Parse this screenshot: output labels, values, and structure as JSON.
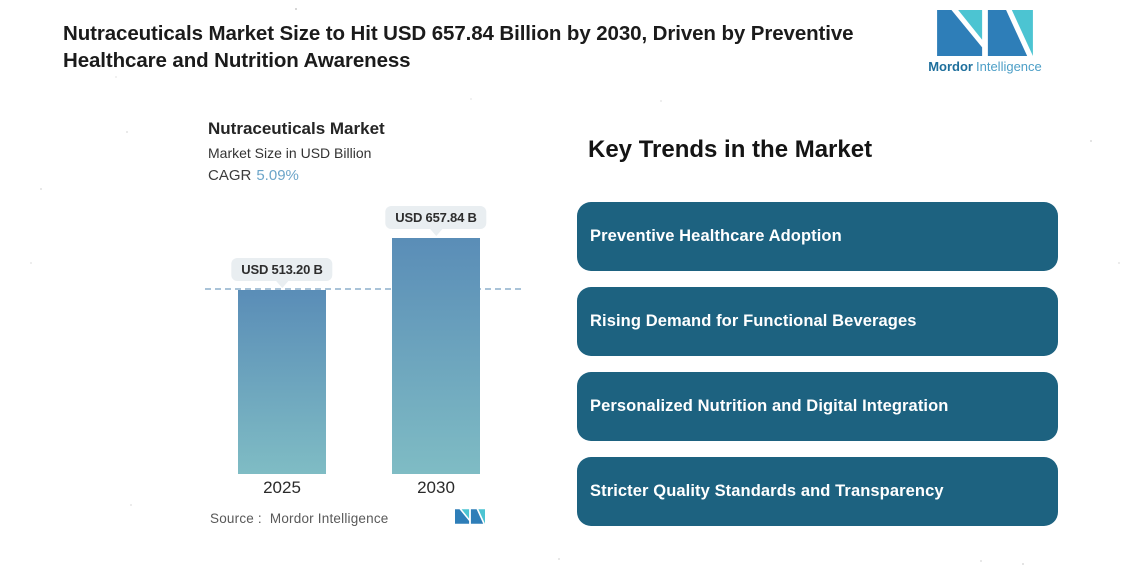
{
  "header": {
    "title_line1": "Nutraceuticals Market Size to Hit USD 657.84 Billion by 2030, Driven by Preventive",
    "title_line2": "Healthcare and Nutrition Awareness"
  },
  "brand": {
    "name_bold": "Mordor",
    "name_light": "Intelligence",
    "colors": {
      "teal": "#4cc4d2",
      "blue": "#2e7eb8"
    }
  },
  "chart": {
    "title": "Nutraceuticals Market",
    "subtitle": "Market Size in USD Billion",
    "cagr_label": "CAGR",
    "cagr_value": "5.09%",
    "source_label": "Source :",
    "source_value": "Mordor Intelligence"
  },
  "chart_data": {
    "type": "bar",
    "title": "Nutraceuticals Market",
    "ylabel": "Market Size in USD Billion",
    "cagr_pct": 5.09,
    "categories": [
      "2025",
      "2030"
    ],
    "values": [
      513.2,
      657.84
    ],
    "value_labels": [
      "USD 513.20 B",
      "USD 657.84 B"
    ],
    "reference_line_value": 513.2,
    "ylim": [
      0,
      700
    ],
    "grid": false,
    "legend": "none",
    "bar_gradient_top": "#5a8db7",
    "bar_gradient_bottom": "#7fbcc4",
    "reference_line_color": "#a9c3d8"
  },
  "trends": {
    "heading": "Key Trends in the Market",
    "card_color": "#1d6280",
    "items": [
      "Preventive Healthcare Adoption",
      "Rising Demand for Functional Beverages",
      "Personalized Nutrition and Digital Integration",
      "Stricter Quality Standards and Transparency"
    ]
  }
}
